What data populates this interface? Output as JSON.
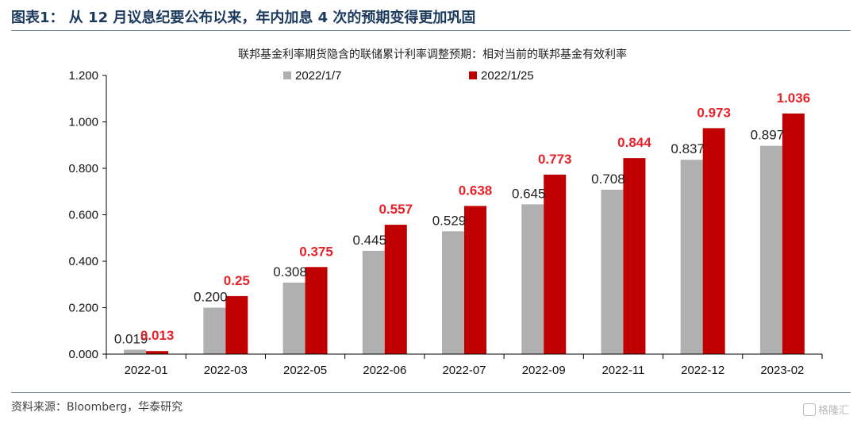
{
  "figure": {
    "title": "图表1：  从 12 月议息纪要公布以来，年内加息 4 次的预期变得更加巩固",
    "source": "资料来源：Bloomberg，华泰研究",
    "watermark": "格隆汇"
  },
  "colors": {
    "series1": "#b0b0b0",
    "series2": "#c00000",
    "red_label": "#e8222a"
  },
  "chart_data": {
    "type": "bar",
    "title": "联邦基金利率期货隐含的联储累计利率调整预期：相对当前的联邦基金有效利率",
    "categories": [
      "2022-01",
      "2022-03",
      "2022-05",
      "2022-06",
      "2022-07",
      "2022-09",
      "2022-11",
      "2022-12",
      "2023-02"
    ],
    "series": [
      {
        "name": "2022/1/7",
        "values": [
          0.019,
          0.2,
          0.308,
          0.445,
          0.529,
          0.645,
          0.708,
          0.837,
          0.897
        ],
        "labels": [
          "0.019",
          "0.200",
          "0.308",
          "0.445",
          "0.529",
          "0.645",
          "0.708",
          "0.837",
          "0.897"
        ]
      },
      {
        "name": "2022/1/25",
        "values": [
          0.013,
          0.25,
          0.375,
          0.557,
          0.638,
          0.773,
          0.844,
          0.973,
          1.036
        ],
        "labels": [
          "0.013",
          "0.25",
          "0.375",
          "0.557",
          "0.638",
          "0.773",
          "0.844",
          "0.973",
          "1.036"
        ]
      }
    ],
    "ylim": [
      0,
      1.2
    ],
    "yticks": [
      "0.000",
      "0.200",
      "0.400",
      "0.600",
      "0.800",
      "1.000",
      "1.200"
    ],
    "legend_position": "top-center",
    "grid": false
  }
}
